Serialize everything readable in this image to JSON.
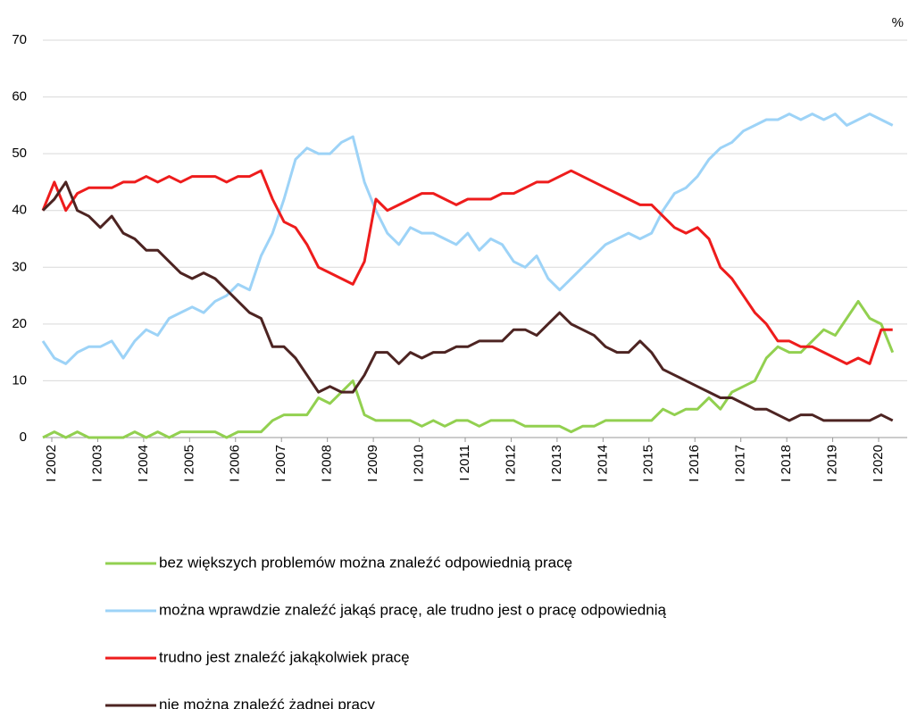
{
  "chart_data": {
    "type": "line",
    "y_unit": "%",
    "categories": [
      "I 2002",
      null,
      null,
      null,
      "I 2003",
      null,
      null,
      null,
      "I 2004",
      null,
      null,
      null,
      "I 2005",
      null,
      null,
      null,
      "I 2006",
      null,
      null,
      null,
      "I 2007",
      null,
      null,
      null,
      "I 2008",
      null,
      null,
      null,
      "I 2009",
      null,
      null,
      null,
      "I 2010",
      null,
      null,
      null,
      "I 2011",
      null,
      null,
      null,
      "I 2012",
      null,
      null,
      null,
      "I 2013",
      null,
      null,
      null,
      "I 2014",
      null,
      null,
      null,
      "I 2015",
      null,
      null,
      null,
      "I 2016",
      null,
      null,
      null,
      "I 2017",
      null,
      null,
      null,
      "I 2018",
      null,
      null,
      null,
      "I 2019",
      null,
      null,
      null,
      "I 2020",
      null,
      null
    ],
    "series": [
      {
        "name": "bez większych problemów można znaleźć odpowiednią pracę",
        "color": "#92d050",
        "values": [
          0,
          1,
          0,
          1,
          0,
          0,
          0,
          0,
          1,
          0,
          1,
          0,
          1,
          1,
          1,
          1,
          0,
          1,
          1,
          1,
          3,
          4,
          4,
          4,
          7,
          6,
          8,
          10,
          4,
          3,
          3,
          3,
          3,
          2,
          3,
          2,
          3,
          3,
          2,
          3,
          3,
          3,
          2,
          2,
          2,
          2,
          1,
          2,
          2,
          3,
          3,
          3,
          3,
          3,
          5,
          4,
          5,
          5,
          7,
          5,
          8,
          9,
          10,
          14,
          16,
          15,
          15,
          17,
          19,
          18,
          21,
          24,
          21,
          20,
          15
        ]
      },
      {
        "name": "można wprawdzie znaleźć jakąś pracę, ale trudno jest o pracę odpowiednią",
        "color": "#9dd3f7",
        "values": [
          17,
          14,
          13,
          15,
          16,
          16,
          17,
          14,
          17,
          19,
          18,
          21,
          22,
          23,
          22,
          24,
          25,
          27,
          26,
          32,
          36,
          42,
          49,
          51,
          50,
          50,
          52,
          53,
          45,
          40,
          36,
          34,
          37,
          36,
          36,
          35,
          34,
          36,
          33,
          35,
          34,
          31,
          30,
          32,
          28,
          26,
          28,
          30,
          32,
          34,
          35,
          36,
          35,
          36,
          40,
          43,
          44,
          46,
          49,
          51,
          52,
          54,
          55,
          56,
          56,
          57,
          56,
          57,
          56,
          57,
          55,
          56,
          57,
          56,
          55
        ]
      },
      {
        "name": "trudno jest znaleźć jakąkolwiek pracę",
        "color": "#ee1c1c",
        "values": [
          40,
          45,
          40,
          43,
          44,
          44,
          44,
          45,
          45,
          46,
          45,
          46,
          45,
          46,
          46,
          46,
          45,
          46,
          46,
          47,
          42,
          38,
          37,
          34,
          30,
          29,
          28,
          27,
          31,
          42,
          40,
          41,
          42,
          43,
          43,
          42,
          41,
          42,
          42,
          42,
          43,
          43,
          44,
          45,
          45,
          46,
          47,
          46,
          45,
          44,
          43,
          42,
          41,
          41,
          39,
          37,
          36,
          37,
          35,
          30,
          28,
          25,
          22,
          20,
          17,
          17,
          16,
          16,
          15,
          14,
          13,
          14,
          13,
          19,
          19
        ]
      },
      {
        "name": "nie można znaleźć żadnej pracy",
        "color": "#4d2422",
        "values": [
          40,
          42,
          45,
          40,
          39,
          37,
          39,
          36,
          35,
          33,
          33,
          31,
          29,
          28,
          29,
          28,
          26,
          24,
          22,
          21,
          16,
          16,
          14,
          11,
          8,
          9,
          8,
          8,
          11,
          15,
          15,
          13,
          15,
          14,
          15,
          15,
          16,
          16,
          17,
          17,
          17,
          19,
          19,
          18,
          20,
          22,
          20,
          19,
          18,
          16,
          15,
          15,
          17,
          15,
          12,
          11,
          10,
          9,
          8,
          7,
          7,
          6,
          5,
          5,
          4,
          3,
          4,
          4,
          3,
          3,
          3,
          3,
          3,
          4,
          3
        ]
      }
    ],
    "ylim": [
      0,
      70
    ],
    "yticks": [
      0,
      10,
      20,
      30,
      40,
      50,
      60,
      70
    ],
    "grid": true
  }
}
